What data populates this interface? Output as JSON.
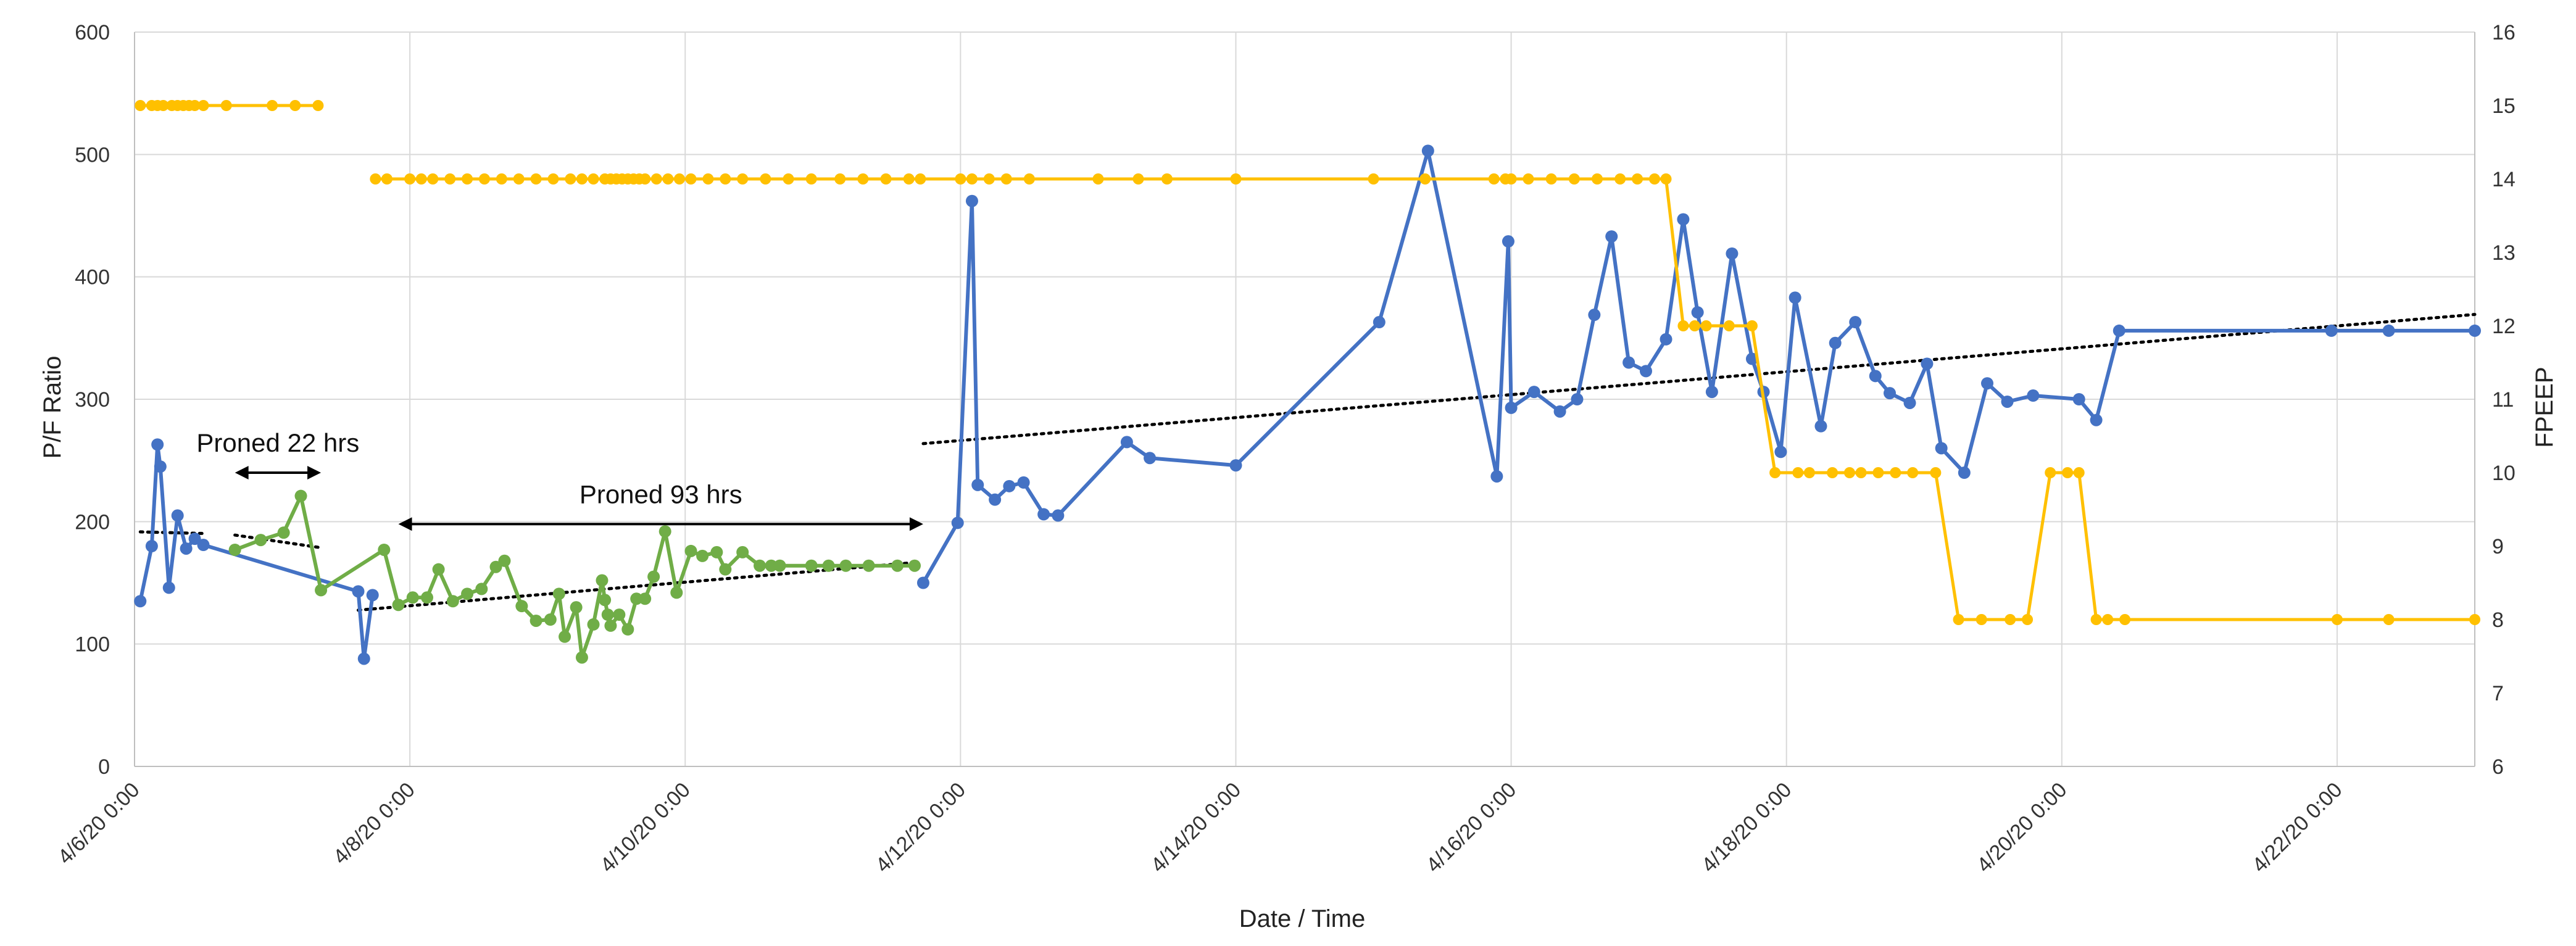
{
  "chart_data": {
    "type": "line",
    "xlabel": "Date / Time",
    "ylabel": "P/F Ratio",
    "y2label": "FPEEP",
    "xlim": [
      "2020-04-06T00:00",
      "2020-04-23T00:00"
    ],
    "ylim": [
      0,
      600
    ],
    "y2lim": [
      6,
      16
    ],
    "x_ticks": [
      "4/6/20 0:00",
      "4/8/20 0:00",
      "4/10/20 0:00",
      "4/12/20 0:00",
      "4/14/20 0:00",
      "4/16/20 0:00",
      "4/18/20 0:00",
      "4/20/20 0:00",
      "4/22/20 0:00"
    ],
    "y_ticks": [
      "0",
      "100",
      "200",
      "300",
      "400",
      "500",
      "600"
    ],
    "y2_ticks": [
      "6",
      "7",
      "8",
      "9",
      "10",
      "11",
      "12",
      "13",
      "14",
      "15",
      "16"
    ],
    "grid": true,
    "colors": {
      "pf": "#4472c4",
      "prone": "#70ad47",
      "fpeep": "#ffc000",
      "trend": "#000000"
    },
    "annotations": [
      {
        "text": "Proned 22 hrs",
        "from": "2020-04-06T17:30",
        "to": "2020-04-07T08:30",
        "y": 240
      },
      {
        "text": "Proned 93 hrs",
        "from": "2020-04-07T22:00",
        "to": "2020-04-11T17:30",
        "y": 198
      }
    ],
    "series": [
      {
        "axis": "left",
        "x": [
          "2020-04-06T01:00",
          "2020-04-06T03:00",
          "2020-04-06T04:00",
          "2020-04-06T04:30",
          "2020-04-06T06:00",
          "2020-04-06T07:30",
          "2020-04-06T09:00",
          "2020-04-06T10:30",
          "2020-04-06T12:00",
          "2020-04-07T15:00",
          "2020-04-07T16:00",
          "2020-04-07T17:30"
        ],
        "values": [
          135,
          180,
          263,
          245,
          146,
          205,
          178,
          186,
          181,
          143,
          88,
          140
        ]
      },
      {
        "axis": "left",
        "x": [
          "2020-04-06T17:30",
          "2020-04-06T22:00",
          "2020-04-07T02:00",
          "2020-04-07T05:00",
          "2020-04-07T08:30",
          "2020-04-07T19:30",
          "2020-04-07T22:00",
          "2020-04-08T00:30",
          "2020-04-08T03:00",
          "2020-04-08T05:00",
          "2020-04-08T07:30",
          "2020-04-08T10:00",
          "2020-04-08T12:30",
          "2020-04-08T15:00",
          "2020-04-08T16:30",
          "2020-04-08T19:30",
          "2020-04-08T22:00",
          "2020-04-09T00:30",
          "2020-04-09T02:00",
          "2020-04-09T03:00",
          "2020-04-09T05:00",
          "2020-04-09T06:00",
          "2020-04-09T08:00",
          "2020-04-09T09:30",
          "2020-04-09T10:00",
          "2020-04-09T10:30",
          "2020-04-09T11:00",
          "2020-04-09T12:30",
          "2020-04-09T14:00",
          "2020-04-09T15:30",
          "2020-04-09T17:00",
          "2020-04-09T18:30",
          "2020-04-09T20:30",
          "2020-04-09T22:30",
          "2020-04-10T01:00",
          "2020-04-10T03:00",
          "2020-04-10T05:30",
          "2020-04-10T07:00",
          "2020-04-10T10:00",
          "2020-04-10T13:00",
          "2020-04-10T15:00",
          "2020-04-10T16:30",
          "2020-04-10T22:00",
          "2020-04-11T01:00",
          "2020-04-11T04:00",
          "2020-04-11T08:00",
          "2020-04-11T13:00",
          "2020-04-11T16:00"
        ],
        "values": [
          177,
          185,
          191,
          221,
          144,
          177,
          132,
          138,
          138,
          161,
          135,
          141,
          145,
          163,
          168,
          131,
          119,
          120,
          141,
          106,
          130,
          89,
          116,
          152,
          136,
          124,
          115,
          124,
          112,
          137,
          137,
          155,
          192,
          142,
          176,
          172,
          175,
          161,
          175,
          164,
          164,
          164,
          164,
          164,
          164,
          164,
          164,
          164
        ]
      },
      {
        "axis": "left",
        "x": [
          "2020-04-11T17:30",
          "2020-04-11T23:30",
          "2020-04-12T02:00",
          "2020-04-12T03:00",
          "2020-04-12T06:00",
          "2020-04-12T08:30",
          "2020-04-12T11:00",
          "2020-04-12T14:30",
          "2020-04-12T17:00",
          "2020-04-13T05:00",
          "2020-04-13T09:00",
          "2020-04-14T00:00",
          "2020-04-15T01:00",
          "2020-04-15T09:30",
          "2020-04-15T21:30",
          "2020-04-15T23:30",
          "2020-04-16T00:00",
          "2020-04-16T04:00",
          "2020-04-16T08:30",
          "2020-04-16T11:30",
          "2020-04-16T14:30",
          "2020-04-16T17:30",
          "2020-04-16T20:30",
          "2020-04-16T23:30",
          "2020-04-17T03:00",
          "2020-04-17T06:00",
          "2020-04-17T08:30",
          "2020-04-17T11:00",
          "2020-04-17T14:30",
          "2020-04-17T18:00",
          "2020-04-17T20:00",
          "2020-04-17T23:00",
          "2020-04-18T01:30",
          "2020-04-18T06:00",
          "2020-04-18T08:30",
          "2020-04-18T12:00",
          "2020-04-18T15:30",
          "2020-04-18T18:00",
          "2020-04-18T21:30",
          "2020-04-19T00:30",
          "2020-04-19T03:00",
          "2020-04-19T07:00",
          "2020-04-19T11:00",
          "2020-04-19T14:30",
          "2020-04-19T19:00",
          "2020-04-20T03:00",
          "2020-04-20T06:00",
          "2020-04-20T10:00",
          "2020-04-21T23:00",
          "2020-04-22T09:00",
          "2020-04-23T00:00"
        ],
        "values": [
          150,
          199,
          462,
          230,
          218,
          229,
          232,
          206,
          205,
          265,
          252,
          246,
          363,
          503,
          237,
          429,
          293,
          306,
          290,
          300,
          369,
          433,
          330,
          323,
          349,
          447,
          371,
          306,
          419,
          333,
          306,
          257,
          383,
          278,
          346,
          363,
          319,
          305,
          297,
          329,
          260,
          240,
          313,
          298,
          303,
          300,
          283,
          356,
          356,
          356,
          356
        ]
      },
      {
        "axis": "right",
        "x": [
          "2020-04-06T01:00",
          "2020-04-06T03:00",
          "2020-04-06T04:00",
          "2020-04-06T05:00",
          "2020-04-06T06:30",
          "2020-04-06T07:30",
          "2020-04-06T08:30",
          "2020-04-06T09:30",
          "2020-04-06T10:30",
          "2020-04-06T12:00",
          "2020-04-06T16:00",
          "2020-04-07T00:00",
          "2020-04-07T04:00",
          "2020-04-07T08:00"
        ],
        "values": [
          15,
          15,
          15,
          15,
          15,
          15,
          15,
          15,
          15,
          15,
          15,
          15,
          15,
          15
        ]
      },
      {
        "axis": "right",
        "x": [
          "2020-04-07T18:00",
          "2020-04-07T20:00",
          "2020-04-08T00:00",
          "2020-04-08T02:00",
          "2020-04-08T04:00",
          "2020-04-08T07:00",
          "2020-04-08T10:00",
          "2020-04-08T13:00",
          "2020-04-08T16:00",
          "2020-04-08T19:00",
          "2020-04-08T22:00",
          "2020-04-09T01:00",
          "2020-04-09T04:00",
          "2020-04-09T06:00",
          "2020-04-09T08:00",
          "2020-04-09T10:00",
          "2020-04-09T11:00",
          "2020-04-09T12:00",
          "2020-04-09T13:00",
          "2020-04-09T14:00",
          "2020-04-09T15:00",
          "2020-04-09T16:00",
          "2020-04-09T17:00",
          "2020-04-09T19:00",
          "2020-04-09T21:00",
          "2020-04-09T23:00",
          "2020-04-10T01:00",
          "2020-04-10T04:00",
          "2020-04-10T07:00",
          "2020-04-10T10:00",
          "2020-04-10T14:00",
          "2020-04-10T18:00",
          "2020-04-10T22:00",
          "2020-04-11T03:00",
          "2020-04-11T07:00",
          "2020-04-11T11:00",
          "2020-04-11T15:00",
          "2020-04-11T17:00",
          "2020-04-12T00:00",
          "2020-04-12T02:00",
          "2020-04-12T05:00",
          "2020-04-12T08:00",
          "2020-04-12T12:00",
          "2020-04-13T00:00",
          "2020-04-13T07:00",
          "2020-04-13T12:00",
          "2020-04-14T00:00",
          "2020-04-15T00:00",
          "2020-04-15T09:00",
          "2020-04-15T21:00",
          "2020-04-15T23:00",
          "2020-04-16T00:00",
          "2020-04-16T03:00",
          "2020-04-16T07:00",
          "2020-04-16T11:00",
          "2020-04-16T15:00",
          "2020-04-16T19:00",
          "2020-04-16T22:00",
          "2020-04-17T01:00",
          "2020-04-17T03:00",
          "2020-04-17T06:00",
          "2020-04-17T08:00",
          "2020-04-17T10:00",
          "2020-04-17T14:00",
          "2020-04-17T18:00",
          "2020-04-17T22:00",
          "2020-04-18T02:00",
          "2020-04-18T04:00",
          "2020-04-18T08:00",
          "2020-04-18T11:00",
          "2020-04-18T13:00",
          "2020-04-18T16:00",
          "2020-04-18T19:00",
          "2020-04-18T22:00",
          "2020-04-19T02:00",
          "2020-04-19T06:00",
          "2020-04-19T10:00",
          "2020-04-19T15:00",
          "2020-04-19T18:00",
          "2020-04-19T22:00",
          "2020-04-20T01:00",
          "2020-04-20T03:00",
          "2020-04-20T06:00",
          "2020-04-20T08:00",
          "2020-04-20T11:00",
          "2020-04-22T00:00",
          "2020-04-22T09:00",
          "2020-04-23T00:00"
        ],
        "values": [
          14,
          14,
          14,
          14,
          14,
          14,
          14,
          14,
          14,
          14,
          14,
          14,
          14,
          14,
          14,
          14,
          14,
          14,
          14,
          14,
          14,
          14,
          14,
          14,
          14,
          14,
          14,
          14,
          14,
          14,
          14,
          14,
          14,
          14,
          14,
          14,
          14,
          14,
          14,
          14,
          14,
          14,
          14,
          14,
          14,
          14,
          14,
          14,
          14,
          14,
          14,
          14,
          14,
          14,
          14,
          14,
          14,
          14,
          14,
          14,
          12,
          12,
          12,
          12,
          12,
          10,
          10,
          10,
          10,
          10,
          10,
          10,
          10,
          10,
          10,
          8,
          8,
          8,
          8,
          10,
          10,
          10,
          8,
          8,
          8,
          8,
          8,
          8
        ]
      }
    ]
  }
}
